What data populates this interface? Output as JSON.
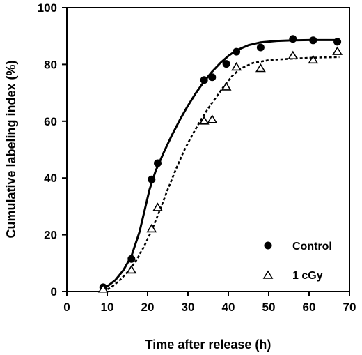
{
  "chart_data": {
    "type": "scatter",
    "title": "",
    "xlabel": "Time after release (h)",
    "ylabel": "Cumulative labeling index (%)",
    "xlim": [
      0,
      70
    ],
    "ylim": [
      0,
      100
    ],
    "xticks": [
      0,
      10,
      20,
      30,
      40,
      50,
      60,
      70
    ],
    "yticks": [
      0,
      20,
      40,
      60,
      80,
      100
    ],
    "grid": false,
    "legend_position": "bottom-right",
    "series": [
      {
        "name": "Control",
        "marker": "filled-circle",
        "line_style": "solid",
        "color": "#000000",
        "points": [
          [
            9,
            1.5
          ],
          [
            16,
            11.5
          ],
          [
            21,
            39.5
          ],
          [
            22.5,
            45.2
          ],
          [
            34,
            74.5
          ],
          [
            36,
            75.5
          ],
          [
            39.5,
            80.2
          ],
          [
            42,
            84.5
          ],
          [
            48,
            86
          ],
          [
            56,
            89
          ],
          [
            61,
            88.5
          ],
          [
            67,
            88
          ]
        ],
        "fit": [
          [
            8.5,
            0.5
          ],
          [
            10,
            1.8
          ],
          [
            12,
            4
          ],
          [
            14,
            7.5
          ],
          [
            16,
            12.5
          ],
          [
            18,
            21
          ],
          [
            19.5,
            30
          ],
          [
            20.5,
            36
          ],
          [
            22,
            42.5
          ],
          [
            24,
            49
          ],
          [
            26,
            55
          ],
          [
            28,
            60.5
          ],
          [
            30,
            65.5
          ],
          [
            32,
            70
          ],
          [
            34,
            74
          ],
          [
            36,
            77.5
          ],
          [
            38,
            80.5
          ],
          [
            40,
            83
          ],
          [
            42,
            85
          ],
          [
            45,
            86.8
          ],
          [
            48,
            87.8
          ],
          [
            52,
            88.3
          ],
          [
            56,
            88.5
          ],
          [
            60,
            88.6
          ],
          [
            64,
            88.6
          ],
          [
            67.5,
            88.6
          ]
        ]
      },
      {
        "name": "1 cGy",
        "marker": "open-triangle",
        "line_style": "dashed",
        "color": "#000000",
        "points": [
          [
            9,
            0.8
          ],
          [
            16,
            7.5
          ],
          [
            21,
            22
          ],
          [
            22.5,
            29.5
          ],
          [
            34,
            60
          ],
          [
            36,
            60.5
          ],
          [
            39.5,
            72
          ],
          [
            42,
            79
          ],
          [
            48,
            78.5
          ],
          [
            56,
            83
          ],
          [
            61,
            81.5
          ],
          [
            67,
            84.5
          ]
        ],
        "fit": [
          [
            9,
            0
          ],
          [
            11,
            1.5
          ],
          [
            13,
            3.8
          ],
          [
            15,
            6.8
          ],
          [
            17,
            10.5
          ],
          [
            19,
            15.5
          ],
          [
            21,
            21.5
          ],
          [
            23,
            28.5
          ],
          [
            25,
            36
          ],
          [
            27,
            43
          ],
          [
            29,
            49.5
          ],
          [
            31,
            55
          ],
          [
            33,
            60
          ],
          [
            35,
            64.5
          ],
          [
            37,
            68.5
          ],
          [
            39,
            72.5
          ],
          [
            41,
            76
          ],
          [
            43,
            78.5
          ],
          [
            46,
            80.5
          ],
          [
            50,
            81.5
          ],
          [
            55,
            82
          ],
          [
            60,
            82.3
          ],
          [
            64,
            82.5
          ],
          [
            67.5,
            82.6
          ]
        ]
      }
    ]
  }
}
